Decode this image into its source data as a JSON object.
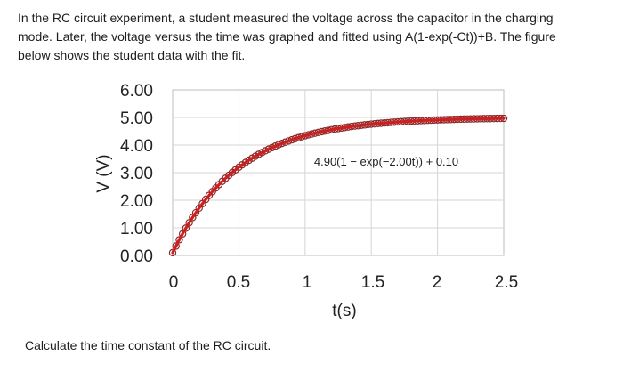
{
  "question": {
    "text": "In the RC circuit experiment, a student measured the voltage across the capacitor in the charging mode. Later, the voltage versus the time was graphed and fitted using A(1-exp(-Ct))+B. The figure below shows the student data with the fit."
  },
  "footer": {
    "text": "Calculate the time constant of the RC circuit."
  },
  "chart_data": {
    "type": "scatter",
    "xlabel": "t(s)",
    "ylabel": "V (V)",
    "xlim": [
      0,
      2.5
    ],
    "ylim": [
      0,
      6
    ],
    "x_ticks": [
      "0",
      "0.5",
      "1",
      "1.5",
      "2",
      "2.5"
    ],
    "y_ticks": [
      "0.00",
      "1.00",
      "2.00",
      "3.00",
      "4.00",
      "5.00",
      "6.00"
    ],
    "grid": true,
    "fit": {
      "A": 4.9,
      "C": 2.0,
      "B": 0.1,
      "label": "4.90(1 − exp(−2.00t)) + 0.10",
      "color": "#cc1f1f"
    },
    "marker_color": "#8b2a2a",
    "t_start": 0,
    "t_end": 2.5,
    "t_step": 0.025
  }
}
